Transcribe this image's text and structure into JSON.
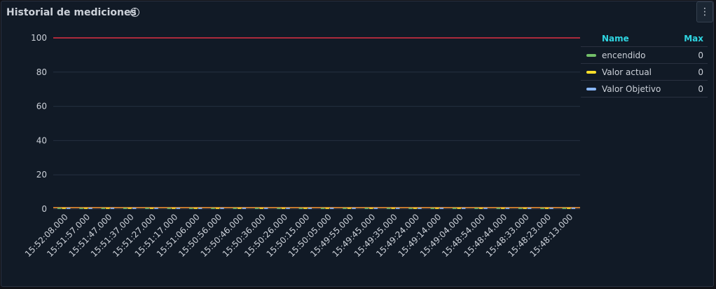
{
  "panel": {
    "title": "Historial de mediciones",
    "menu_label": "⋮"
  },
  "legend": {
    "header_name": "Name",
    "header_max": "Max",
    "header_color": "#2fd6e2",
    "items": [
      {
        "name": "encendido",
        "max": "0",
        "color": "#73bf69"
      },
      {
        "name": "Valor actual",
        "max": "0",
        "color": "#fade2a"
      },
      {
        "name": "Valor Objetivo",
        "max": "0",
        "color": "#8ab8ff"
      }
    ]
  },
  "chart_data": {
    "type": "bar",
    "title": "Historial de mediciones",
    "categories": [
      "15:52:08.000",
      "15:51:57.000",
      "15:51:47.000",
      "15:51:37.000",
      "15:51:27.000",
      "15:51:17.000",
      "15:51:06.000",
      "15:50:56.000",
      "15:50:46.000",
      "15:50:36.000",
      "15:50:26.000",
      "15:50:15.000",
      "15:50:05.000",
      "15:49:55.000",
      "15:49:45.000",
      "15:49:35.000",
      "15:49:24.000",
      "15:49:14.000",
      "15:49:04.000",
      "15:48:54.000",
      "15:48:44.000",
      "15:48:33.000",
      "15:48:23.000",
      "15:48:13.000"
    ],
    "series": [
      {
        "name": "encendido",
        "values": [
          0,
          0,
          0,
          0,
          0,
          0,
          0,
          0,
          0,
          0,
          0,
          0,
          0,
          0,
          0,
          0,
          0,
          0,
          0,
          0,
          0,
          0,
          0,
          0
        ],
        "color": "#73bf69"
      },
      {
        "name": "Valor actual",
        "values": [
          0,
          0,
          0,
          0,
          0,
          0,
          0,
          0,
          0,
          0,
          0,
          0,
          0,
          0,
          0,
          0,
          0,
          0,
          0,
          0,
          0,
          0,
          0,
          0
        ],
        "color": "#fade2a"
      },
      {
        "name": "Valor Objetivo",
        "values": [
          0,
          0,
          0,
          0,
          0,
          0,
          0,
          0,
          0,
          0,
          0,
          0,
          0,
          0,
          0,
          0,
          0,
          0,
          0,
          0,
          0,
          0,
          0,
          0
        ],
        "color": "#8ab8ff"
      }
    ],
    "yticks": [
      0,
      20,
      40,
      60,
      80,
      100
    ],
    "ylim": [
      0,
      100
    ],
    "threshold": {
      "value": 100,
      "color": "#e02f44"
    },
    "baseline_threshold": {
      "value": 0,
      "color": "#ff9830"
    },
    "grid": true,
    "legend_position": "right"
  }
}
